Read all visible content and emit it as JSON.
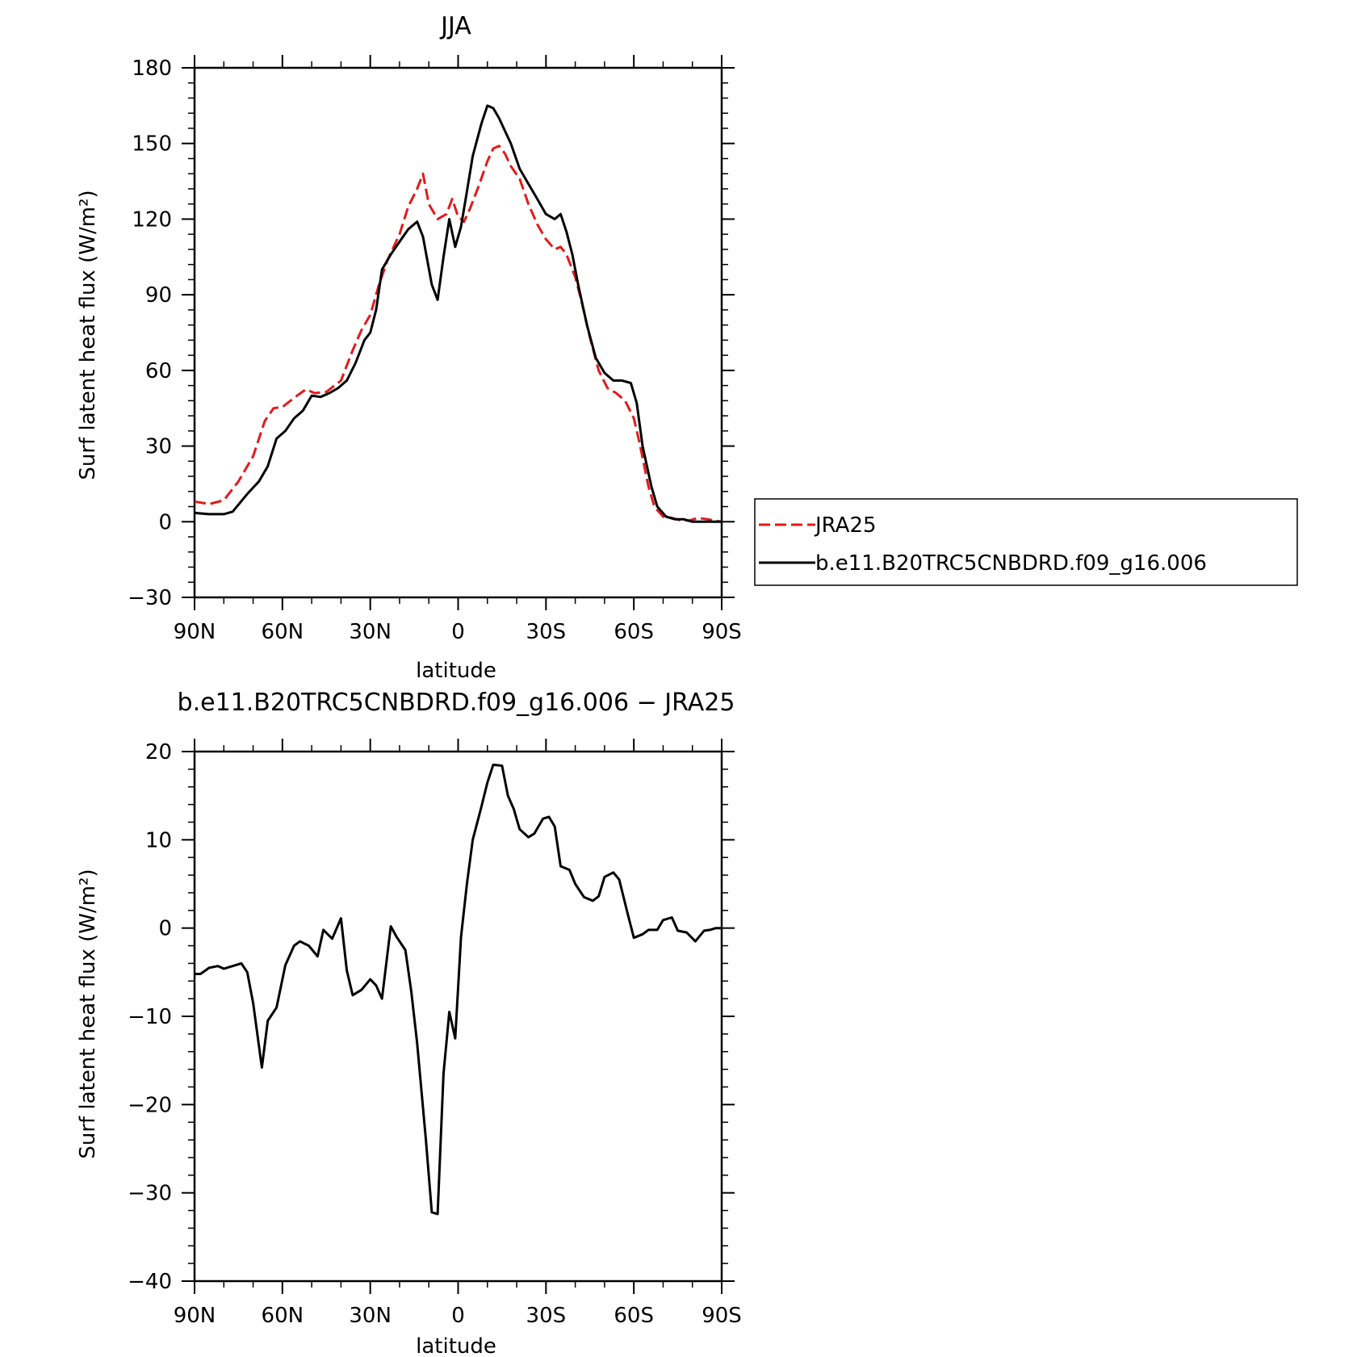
{
  "chart_data": [
    {
      "type": "line",
      "title": "JJA",
      "xlabel": "latitude",
      "ylabel": "Surf latent heat flux (W/m²)",
      "xlim": [
        -90,
        90
      ],
      "ylim": [
        -30,
        180
      ],
      "yticks": [
        -30,
        0,
        30,
        60,
        90,
        120,
        150,
        180
      ],
      "xticks": [
        -90,
        -60,
        -30,
        0,
        30,
        60,
        90
      ],
      "xtick_labels": [
        "90N",
        "60N",
        "30N",
        "0",
        "30S",
        "60S",
        "90S"
      ],
      "x_note_values": "x = 0 at equator; negative = north latitude, positive = south latitude (axis reads 90N to 90S)",
      "legend": {
        "placement": "right"
      },
      "series": [
        {
          "name": "JRA25",
          "color": "#e31a1c",
          "style": "dashed",
          "x": [
            -90,
            -85,
            -80,
            -75,
            -70,
            -66,
            -63,
            -60,
            -55,
            -52,
            -49,
            -45,
            -40,
            -36,
            -33,
            -30,
            -27,
            -24,
            -20,
            -17,
            -14,
            -12,
            -10,
            -7,
            -4,
            -2,
            0,
            2,
            4,
            7,
            10,
            12,
            14,
            16,
            18,
            21,
            24,
            27,
            30,
            33,
            35,
            37,
            40,
            42,
            45,
            48,
            51,
            54,
            57,
            60,
            62,
            65,
            67,
            70,
            73,
            76,
            79,
            82,
            85,
            90
          ],
          "values": [
            8,
            7,
            8.5,
            16,
            26,
            40,
            45,
            45.5,
            50,
            52.5,
            51,
            51.5,
            56,
            68,
            76,
            82,
            94,
            104,
            114,
            125,
            132,
            138,
            126,
            120,
            122,
            128,
            121,
            119,
            124,
            133,
            143,
            148,
            149,
            146,
            141,
            136,
            126,
            118,
            112,
            108,
            109,
            106,
            97,
            88,
            73,
            60,
            53,
            51,
            48,
            41,
            31,
            14,
            6,
            2,
            1.5,
            0.5,
            0.5,
            1.5,
            1,
            0
          ]
        },
        {
          "name": "b.e11.B20TRC5CNBDRD.f09_g16.006",
          "color": "#000000",
          "style": "solid",
          "x": [
            -90,
            -85,
            -80,
            -77,
            -72,
            -68,
            -65,
            -62,
            -59,
            -56,
            -53,
            -50,
            -47,
            -44,
            -41,
            -38,
            -35,
            -32,
            -30,
            -28,
            -26,
            -23,
            -20,
            -17,
            -14,
            -12,
            -9,
            -7,
            -5,
            -3,
            -1,
            1,
            3,
            5,
            8,
            10,
            12,
            14,
            16,
            18,
            21,
            24,
            27,
            30,
            33,
            35,
            37,
            39,
            41,
            44,
            47,
            50,
            53,
            56,
            59,
            61,
            63,
            66,
            68,
            71,
            74,
            77,
            80,
            83,
            86,
            90
          ],
          "values": [
            3.5,
            3,
            3,
            4,
            11,
            16,
            22,
            33,
            36,
            41,
            44,
            50,
            49.5,
            51,
            53,
            56,
            63,
            72,
            75,
            84,
            100,
            106,
            111,
            116,
            119,
            113,
            94,
            88,
            105,
            120,
            109,
            117,
            131,
            145,
            158,
            165,
            164,
            160,
            155,
            150,
            140,
            134,
            128,
            122,
            120,
            122,
            115,
            106,
            94,
            78,
            65,
            59,
            56,
            56,
            55,
            47,
            30,
            14,
            6,
            2,
            1,
            1,
            0,
            0,
            0,
            0
          ]
        }
      ]
    },
    {
      "type": "line",
      "title": "b.e11.B20TRC5CNBDRD.f09_g16.006 − JRA25",
      "xlabel": "latitude",
      "ylabel": "Surf latent heat flux (W/m²)",
      "xlim": [
        -90,
        90
      ],
      "ylim": [
        -40,
        20
      ],
      "yticks": [
        -40,
        -30,
        -20,
        -10,
        0,
        10,
        20
      ],
      "xticks": [
        -90,
        -60,
        -30,
        0,
        30,
        60,
        90
      ],
      "xtick_labels": [
        "90N",
        "60N",
        "30N",
        "0",
        "30S",
        "60S",
        "90S"
      ],
      "series": [
        {
          "name": "",
          "color": "#000000",
          "style": "solid",
          "x": [
            -90,
            -88,
            -85,
            -82,
            -80,
            -77,
            -74,
            -72,
            -70,
            -67,
            -65,
            -62,
            -59,
            -56,
            -54,
            -51,
            -48,
            -46,
            -43,
            -40,
            -38,
            -36,
            -33,
            -30,
            -28,
            -26,
            -23,
            -21,
            -18,
            -16,
            -14,
            -11,
            -9,
            -7,
            -5,
            -3,
            -1,
            1,
            3,
            5,
            8,
            10,
            12,
            15,
            17,
            19,
            21,
            24,
            26,
            29,
            31,
            33,
            35,
            38,
            40,
            43,
            46,
            48,
            50,
            53,
            55,
            58,
            60,
            63,
            65,
            68,
            70,
            73,
            75,
            78,
            81,
            84,
            86,
            88,
            90
          ],
          "values": [
            -5.2,
            -5.2,
            -4.5,
            -4.3,
            -4.6,
            -4.3,
            -4,
            -5,
            -8.5,
            -15.8,
            -10.5,
            -9,
            -4.2,
            -2,
            -1.5,
            -2,
            -3.2,
            -0.2,
            -1.2,
            1.1,
            -4.8,
            -7.6,
            -7,
            -5.8,
            -6.5,
            -8,
            0.2,
            -1,
            -2.5,
            -7.2,
            -13,
            -24,
            -32.2,
            -32.4,
            -16.5,
            -9.5,
            -12.5,
            -1,
            5,
            10,
            13.8,
            16.5,
            18.5,
            18.4,
            15,
            13.5,
            11.2,
            10.3,
            10.7,
            12.4,
            12.6,
            11.5,
            7,
            6.6,
            5,
            3.5,
            3.1,
            3.6,
            5.8,
            6.3,
            5.5,
            1.5,
            -1.1,
            -0.7,
            -0.2,
            -0.2,
            0.9,
            1.2,
            -0.3,
            -0.5,
            -1.5,
            -0.3,
            -0.2,
            0,
            0
          ]
        }
      ]
    }
  ]
}
